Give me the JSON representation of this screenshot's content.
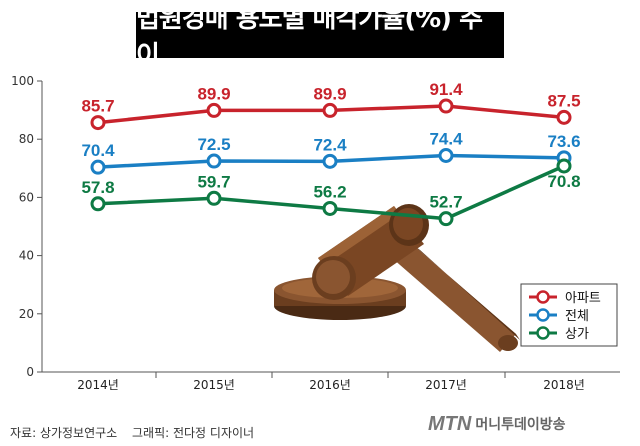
{
  "title": "법원경매 용도별 매각가율(%) 추이",
  "source": "자료: 상가정보연구소",
  "graphic_credit": "그래픽: 전다정 디자이너",
  "brand": {
    "logo_text": "MTN",
    "name": "머니투데이방송"
  },
  "chart_data": {
    "type": "line",
    "title": "법원경매 용도별 매각가율(%) 추이",
    "xlabel": "",
    "ylabel": "",
    "categories": [
      "2014년",
      "2015년",
      "2016년",
      "2017년",
      "2018년"
    ],
    "ylim": [
      0,
      100
    ],
    "yticks": [
      0,
      20,
      40,
      60,
      80,
      100
    ],
    "grid": false,
    "legend_position": "bottom-right",
    "series": [
      {
        "name": "아파트",
        "color": "#c8232c",
        "values": [
          85.7,
          89.9,
          89.9,
          91.4,
          87.5
        ]
      },
      {
        "name": "전체",
        "color": "#1a7fc4",
        "values": [
          70.4,
          72.5,
          72.4,
          74.4,
          73.6
        ]
      },
      {
        "name": "상가",
        "color": "#0e7a44",
        "values": [
          57.8,
          59.7,
          56.2,
          52.7,
          70.8
        ]
      }
    ]
  }
}
